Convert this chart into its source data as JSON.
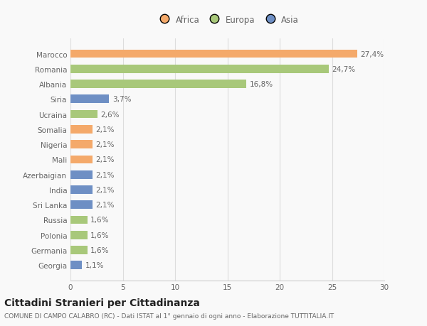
{
  "categories": [
    "Marocco",
    "Romania",
    "Albania",
    "Siria",
    "Ucraina",
    "Somalia",
    "Nigeria",
    "Mali",
    "Azerbaigian",
    "India",
    "Sri Lanka",
    "Russia",
    "Polonia",
    "Germania",
    "Georgia"
  ],
  "values": [
    27.4,
    24.7,
    16.8,
    3.7,
    2.6,
    2.1,
    2.1,
    2.1,
    2.1,
    2.1,
    2.1,
    1.6,
    1.6,
    1.6,
    1.1
  ],
  "labels": [
    "27,4%",
    "24,7%",
    "16,8%",
    "3,7%",
    "2,6%",
    "2,1%",
    "2,1%",
    "2,1%",
    "2,1%",
    "2,1%",
    "2,1%",
    "1,6%",
    "1,6%",
    "1,6%",
    "1,1%"
  ],
  "colors": [
    "#F4A96A",
    "#A8C87A",
    "#A8C87A",
    "#6E8FC4",
    "#A8C87A",
    "#F4A96A",
    "#F4A96A",
    "#F4A96A",
    "#6E8FC4",
    "#6E8FC4",
    "#6E8FC4",
    "#A8C87A",
    "#A8C87A",
    "#A8C87A",
    "#6E8FC4"
  ],
  "continents": [
    "Africa",
    "Europa",
    "Asia"
  ],
  "legend_colors": [
    "#F4A96A",
    "#A8C87A",
    "#6E8FC4"
  ],
  "xlim": [
    0,
    30
  ],
  "xticks": [
    0,
    5,
    10,
    15,
    20,
    25,
    30
  ],
  "title": "Cittadini Stranieri per Cittadinanza",
  "subtitle": "COMUNE DI CAMPO CALABRO (RC) - Dati ISTAT al 1° gennaio di ogni anno - Elaborazione TUTTITALIA.IT",
  "bg_color": "#f9f9f9",
  "bar_height": 0.55,
  "label_fontsize": 7.5,
  "tick_fontsize": 7.5,
  "title_fontsize": 10,
  "subtitle_fontsize": 6.5
}
